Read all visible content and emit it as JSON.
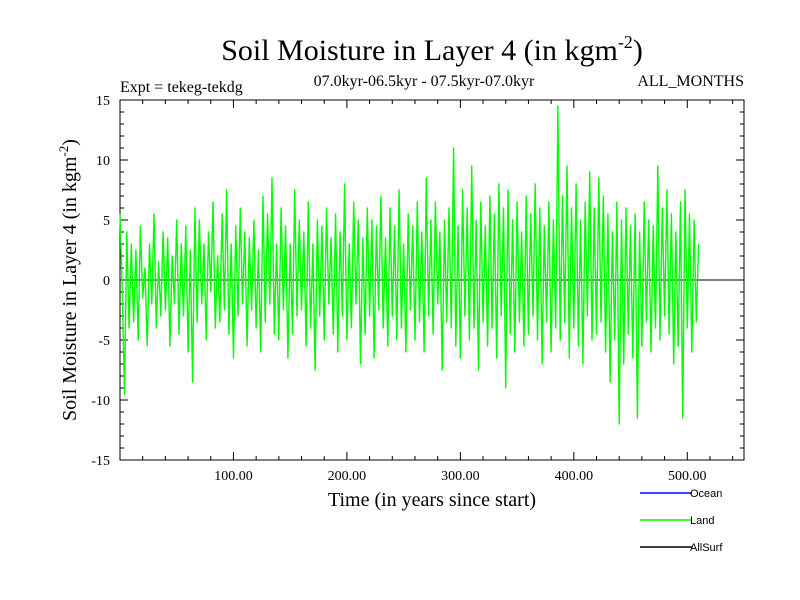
{
  "chart_data": {
    "type": "line",
    "title": "Soil Moisture in Layer 4 (in kgm",
    "title_exponent": "-2",
    "title_suffix": ")",
    "left_subtitle": "Expt = tekeg-tekdg",
    "center_subtitle": "07.0kyr-06.5kyr - 07.5kyr-07.0kyr",
    "right_subtitle": "ALL_MONTHS",
    "xlabel": "Time (in years since start)",
    "ylabel": "Soil Moisture in Layer 4 (in kgm",
    "ylabel_exponent": "-2",
    "ylabel_suffix": ")",
    "xlim": [
      0,
      550
    ],
    "ylim": [
      -15,
      15
    ],
    "x_ticks": [
      100,
      200,
      300,
      400,
      500
    ],
    "x_tick_labels": [
      "100.00",
      "200.00",
      "300.00",
      "400.00",
      "500.00"
    ],
    "y_ticks": [
      -15,
      -10,
      -5,
      0,
      5,
      10,
      15
    ],
    "y_tick_labels": [
      "-15",
      "-10",
      "-5",
      "0",
      "5",
      "10",
      "15"
    ],
    "zero_line": true,
    "legend_position": "bottom-right",
    "series": [
      {
        "name": "Ocean",
        "color": "#0000ff",
        "legend_only": true,
        "values": []
      },
      {
        "name": "Land",
        "color": "#00ff00",
        "x_start": 0,
        "x_step": 2,
        "values": [
          5.5,
          -1.0,
          -9.5,
          4.0,
          -4.0,
          3.0,
          -3.5,
          2.5,
          -5.0,
          4.5,
          -1.5,
          1.0,
          -5.5,
          3.0,
          -2.0,
          5.5,
          -4.0,
          1.5,
          -3.0,
          4.0,
          -2.5,
          3.5,
          -5.5,
          2.0,
          -2.0,
          5.0,
          -4.5,
          3.0,
          -3.0,
          4.5,
          -6.0,
          2.5,
          -8.5,
          6.0,
          -3.5,
          5.0,
          -2.0,
          3.0,
          -5.0,
          4.0,
          -1.0,
          6.5,
          -4.0,
          2.0,
          -3.5,
          5.5,
          -2.5,
          7.5,
          -4.5,
          3.0,
          -6.5,
          4.5,
          -3.0,
          6.0,
          -2.0,
          4.0,
          -5.5,
          3.5,
          -2.5,
          5.0,
          -4.0,
          2.5,
          -6.0,
          7.0,
          -3.5,
          5.5,
          -2.0,
          8.5,
          -4.5,
          3.0,
          -5.0,
          6.0,
          -2.5,
          4.5,
          -6.5,
          3.0,
          -4.5,
          7.5,
          -3.0,
          5.0,
          -2.5,
          4.0,
          -5.5,
          6.5,
          -4.0,
          3.0,
          -7.5,
          5.0,
          -3.0,
          4.5,
          -5.0,
          6.0,
          -2.0,
          3.5,
          -4.5,
          5.5,
          -6.0,
          4.0,
          -3.0,
          8.0,
          -5.0,
          3.0,
          -4.0,
          6.5,
          -2.0,
          5.0,
          -7.0,
          3.5,
          -4.5,
          6.0,
          -3.0,
          5.0,
          -6.5,
          4.5,
          -2.5,
          7.0,
          -4.0,
          3.5,
          -5.5,
          6.0,
          -3.0,
          4.5,
          -5.0,
          7.5,
          -4.0,
          3.0,
          -6.0,
          5.5,
          -2.5,
          4.5,
          -5.0,
          6.5,
          -3.5,
          4.0,
          -6.0,
          8.5,
          -3.0,
          5.0,
          -4.5,
          6.5,
          -2.0,
          4.0,
          -7.5,
          5.0,
          -3.5,
          6.0,
          -4.0,
          11.0,
          -5.5,
          4.5,
          -6.5,
          7.5,
          -3.0,
          6.0,
          -5.0,
          9.5,
          -4.0,
          5.0,
          -7.5,
          6.5,
          -3.5,
          4.5,
          -5.5,
          7.0,
          -4.0,
          5.5,
          -6.5,
          8.0,
          -3.0,
          6.0,
          -9.0,
          7.5,
          -4.5,
          5.0,
          -6.0,
          6.5,
          -3.5,
          4.0,
          -5.5,
          7.0,
          -4.5,
          5.5,
          -3.0,
          8.0,
          -5.0,
          6.0,
          -7.0,
          4.5,
          -3.5,
          6.5,
          -6.0,
          5.0,
          -4.0,
          14.5,
          -5.0,
          7.0,
          -3.5,
          9.5,
          -6.5,
          6.0,
          -4.0,
          8.0,
          -5.5,
          5.0,
          -7.0,
          6.5,
          -3.0,
          9.0,
          -5.0,
          6.0,
          -4.5,
          8.5,
          -3.5,
          7.0,
          -6.0,
          5.5,
          -8.5,
          4.0,
          -5.0,
          6.5,
          -12.0,
          5.0,
          -7.0,
          6.0,
          -4.5,
          4.5,
          -6.5,
          5.5,
          -11.5,
          4.0,
          -5.5,
          6.5,
          -3.5,
          5.0,
          -6.0,
          4.5,
          -4.0,
          9.5,
          -5.0,
          6.0,
          -3.0,
          7.5,
          -4.5,
          5.5,
          -7.0,
          4.0,
          -5.5,
          6.5,
          -11.5,
          7.5,
          -4.0,
          5.5,
          -6.0,
          5.0,
          -3.5,
          3.0
        ]
      },
      {
        "name": "AllSurf",
        "color": "#000000",
        "legend_only": true,
        "values": []
      }
    ]
  }
}
